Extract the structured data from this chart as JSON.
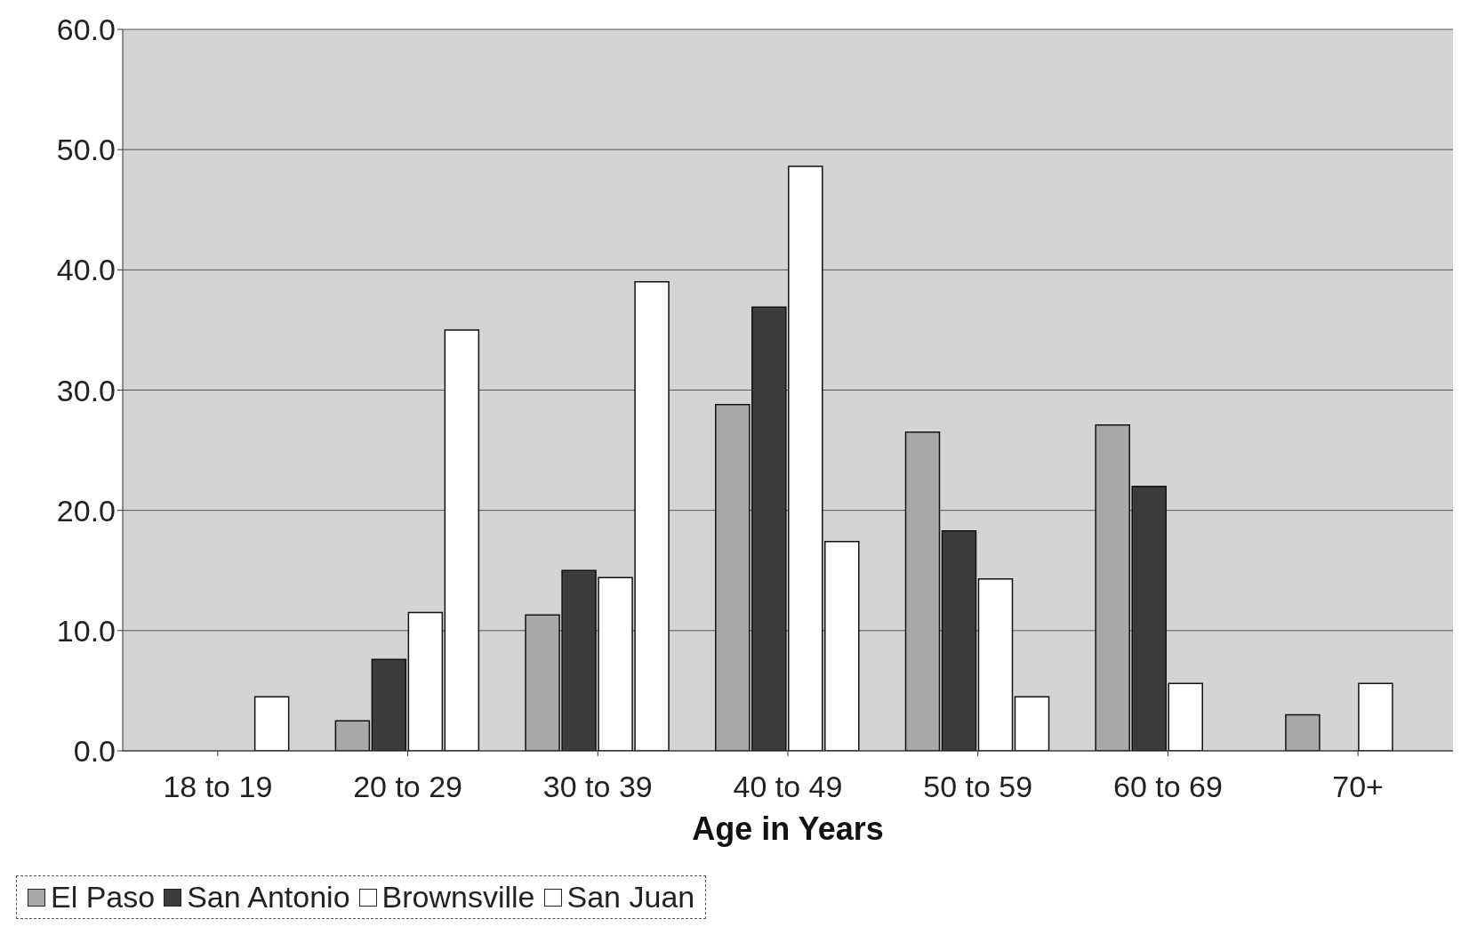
{
  "chart_data": {
    "type": "bar",
    "xlabel": "Age in Years",
    "categories": [
      "18 to 19",
      "20 to 29",
      "30 to 39",
      "40 to 49",
      "50 to 59",
      "60 to 69",
      "70+"
    ],
    "series": [
      {
        "name": "El Paso",
        "color": "#a8a8a8",
        "values": [
          null,
          2.5,
          11.3,
          28.8,
          26.5,
          27.1,
          3.0
        ]
      },
      {
        "name": "San Antonio",
        "color": "#3c3c3c",
        "values": [
          null,
          7.6,
          15.0,
          36.9,
          18.3,
          22.0,
          null
        ]
      },
      {
        "name": "Brownsville",
        "color": "#ffffff",
        "values": [
          null,
          11.5,
          14.4,
          48.6,
          14.3,
          5.6,
          5.6
        ]
      },
      {
        "name": "San Juan",
        "color": "#ffffff",
        "values": [
          4.5,
          35.0,
          39.0,
          17.4,
          4.5,
          null,
          null
        ]
      }
    ],
    "ylim": [
      0,
      60
    ],
    "yticks": [
      {
        "value": 0,
        "label": "0.0"
      },
      {
        "value": 10,
        "label": "10.0"
      },
      {
        "value": 20,
        "label": "20.0"
      },
      {
        "value": 30,
        "label": "30.0"
      },
      {
        "value": 40,
        "label": "40.0"
      },
      {
        "value": 50,
        "label": "50.0"
      },
      {
        "value": 60,
        "label": "60.0"
      }
    ],
    "grid": "y",
    "legend": "bottom"
  }
}
